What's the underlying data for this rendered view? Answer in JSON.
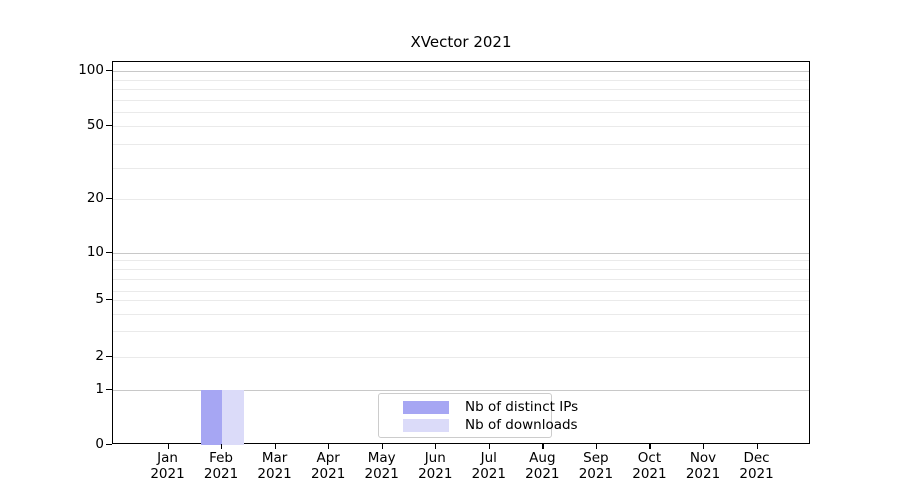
{
  "chart_data": {
    "type": "bar",
    "title": "XVector 2021",
    "categories": [
      "Jan 2021",
      "Feb 2021",
      "Mar 2021",
      "Apr 2021",
      "May 2021",
      "Jun 2021",
      "Jul 2021",
      "Aug 2021",
      "Sep 2021",
      "Oct 2021",
      "Nov 2021",
      "Dec 2021"
    ],
    "series": [
      {
        "name": "Nb of distinct IPs",
        "color": "#a6a6f3",
        "values": [
          0,
          1,
          0,
          0,
          0,
          0,
          0,
          0,
          0,
          0,
          0,
          0
        ]
      },
      {
        "name": "Nb of downloads",
        "color": "#dbdbf9",
        "values": [
          0,
          1,
          0,
          0,
          0,
          0,
          0,
          0,
          0,
          0,
          0,
          0
        ]
      }
    ],
    "y_axis": {
      "ticks": [
        0,
        1,
        2,
        5,
        10,
        20,
        50,
        100
      ],
      "scale": "log-like above 1, linear 0-1",
      "ylim": [
        0,
        100
      ]
    },
    "x_axis": {
      "year": "2021",
      "tick_label_format": "month over year, two lines"
    },
    "grid": {
      "horizontal": true,
      "vertical": false,
      "minor_lines": true
    },
    "legend": {
      "position": "bottom-center inside plot",
      "entries": [
        "Nb of distinct IPs",
        "Nb of downloads"
      ]
    }
  }
}
